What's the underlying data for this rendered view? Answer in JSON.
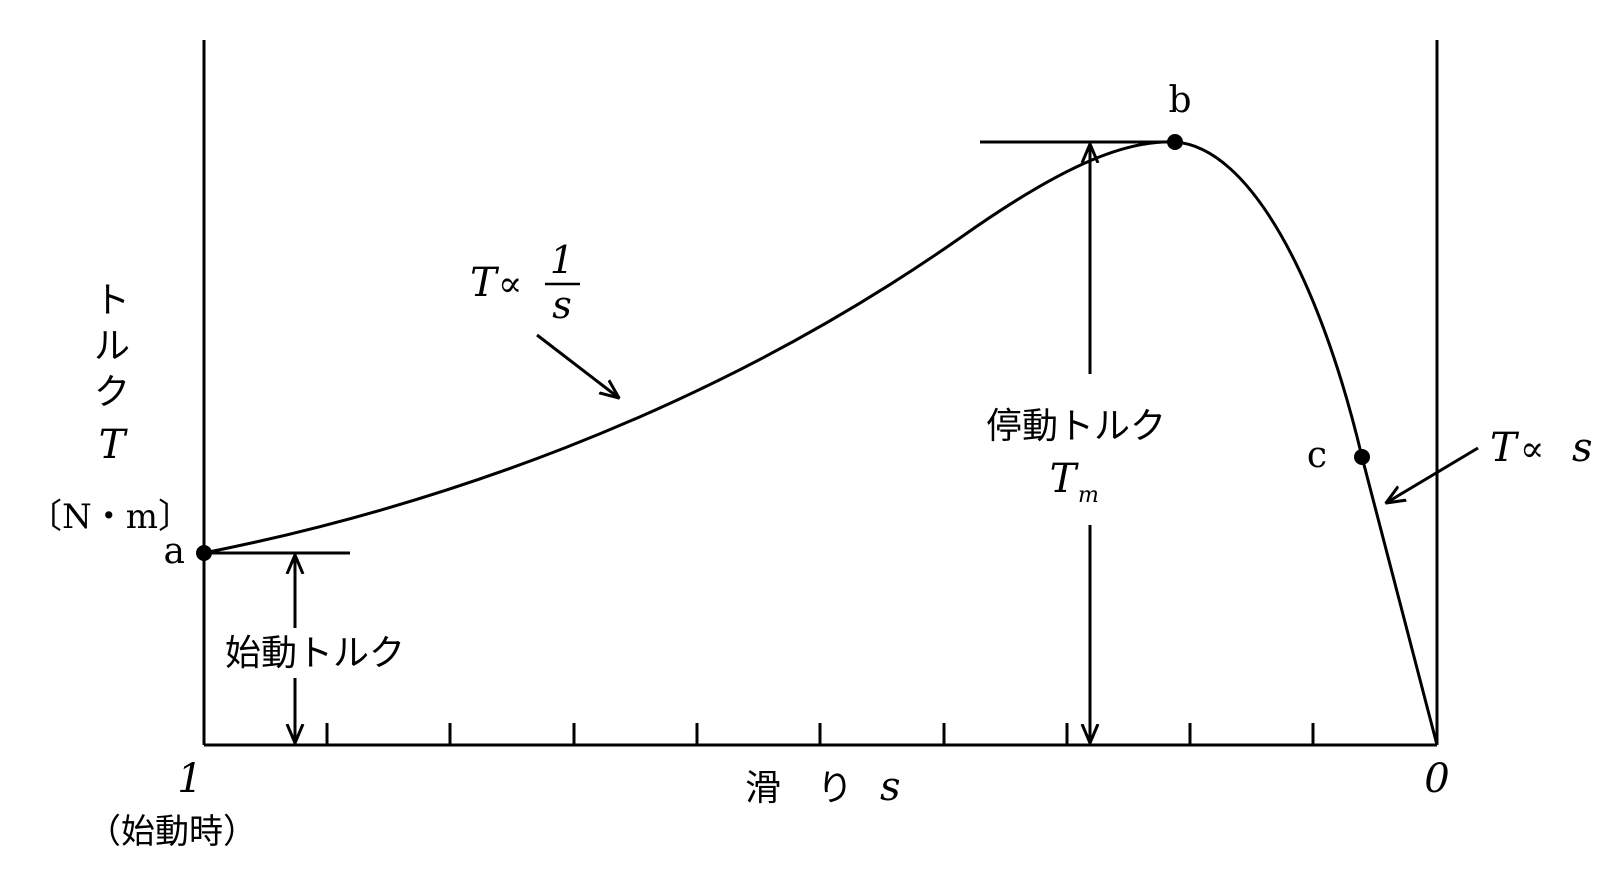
{
  "axes": {
    "y_label": {
      "kana": [
        "ト",
        "ル",
        "ク"
      ],
      "symbol": "T",
      "unit": "〔N・m〕"
    },
    "x_label": {
      "text": "滑　り",
      "symbol": "s"
    },
    "x_left": {
      "value": "1",
      "note": "（始動時）"
    },
    "x_right": {
      "value": "0"
    }
  },
  "points": {
    "a": "a",
    "b": "b",
    "c": "c"
  },
  "annotations": {
    "starting_torque": "始動トルク",
    "stalling_torque": "停動トルク",
    "stalling_symbol": "T",
    "stalling_subscript": "m",
    "inverse_relation": {
      "lhs": "T",
      "op": "∝",
      "numerator": "1",
      "denominator": "s"
    },
    "linear_relation": {
      "lhs": "T",
      "op": "∝",
      "rhs": "s"
    }
  }
}
